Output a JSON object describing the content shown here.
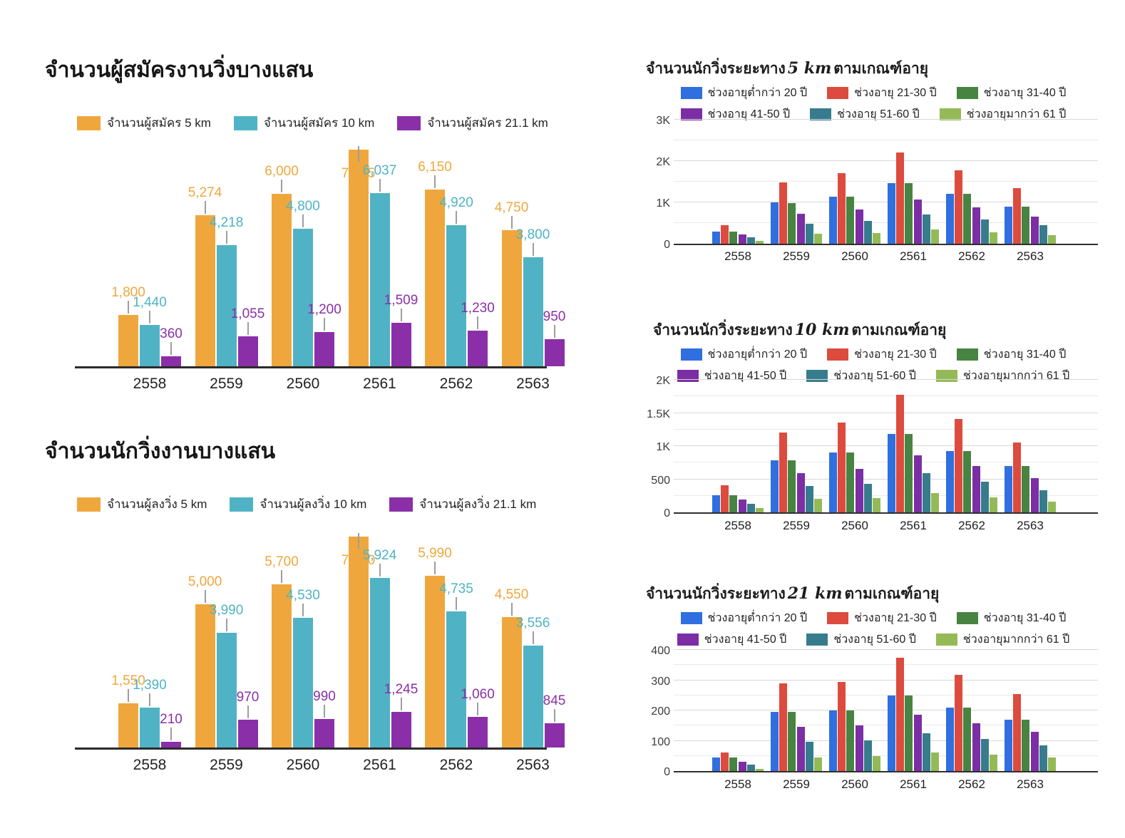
{
  "chart_data": [
    {
      "id": "registrants",
      "type": "bar",
      "title": "จำนวนผู้สมัครงานวิ่งบางแสน",
      "categories": [
        "2558",
        "2559",
        "2560",
        "2561",
        "2562",
        "2563"
      ],
      "ylim": [
        0,
        7700
      ],
      "grid": false,
      "legend_position": "top",
      "series": [
        {
          "name": "จำนวนผู้สมัคร 5 km",
          "color": "#EFA73D",
          "values": [
            1800,
            5274,
            6000,
            7545,
            6150,
            4750
          ],
          "labels": [
            "1,800",
            "5,274",
            "6,000",
            "7,545",
            "6,150",
            "4,750"
          ]
        },
        {
          "name": "จำนวนผู้สมัคร 10 km",
          "color": "#4FB3C5",
          "values": [
            1440,
            4218,
            4800,
            6037,
            4920,
            3800
          ],
          "labels": [
            "1,440",
            "4,218",
            "4,800",
            "6,037",
            "4,920",
            "3,800"
          ]
        },
        {
          "name": "จำนวนผู้สมัคร 21.1 km",
          "color": "#8A2FA8",
          "values": [
            360,
            1055,
            1200,
            1509,
            1230,
            950
          ],
          "labels": [
            "360",
            "1,055",
            "1,200",
            "1,509",
            "1,230",
            "950"
          ]
        }
      ]
    },
    {
      "id": "runners",
      "type": "bar",
      "title": "จำนวนนักวิ่งงานบางแสน",
      "categories": [
        "2558",
        "2559",
        "2560",
        "2561",
        "2562",
        "2563"
      ],
      "ylim": [
        0,
        7700
      ],
      "grid": false,
      "legend_position": "top",
      "series": [
        {
          "name": "จำนวนผู้ลงวิ่ง 5 km",
          "color": "#EFA73D",
          "values": [
            1550,
            5000,
            5700,
            7350,
            5990,
            4550
          ],
          "labels": [
            "1,550",
            "5,000",
            "5,700",
            "7,350",
            "5,990",
            "4,550"
          ]
        },
        {
          "name": "จำนวนผู้ลงวิ่ง 10 km",
          "color": "#4FB3C5",
          "values": [
            1390,
            3990,
            4530,
            5924,
            4735,
            3556
          ],
          "labels": [
            "1,390",
            "3,990",
            "4,530",
            "5,924",
            "4,735",
            "3,556"
          ]
        },
        {
          "name": "จำนวนผู้ลงวิ่ง 21.1 km",
          "color": "#8A2FA8",
          "values": [
            210,
            970,
            990,
            1245,
            1060,
            845
          ],
          "labels": [
            "210",
            "970",
            "990",
            "1,245",
            "1,060",
            "845"
          ]
        }
      ]
    },
    {
      "id": "age_5km",
      "type": "bar",
      "title_prefix": "จำนวนนักวิ่งระยะทาง",
      "title_distance": "5 km",
      "title_suffix": "ตามเกณฑ์อายุ",
      "categories": [
        "2558",
        "2559",
        "2560",
        "2561",
        "2562",
        "2563"
      ],
      "ylim": [
        0,
        3000
      ],
      "minor_step": 500,
      "grid": true,
      "legend_position": "top",
      "y_ticks": [
        {
          "label": "3K",
          "value": 3000
        },
        {
          "label": "2K",
          "value": 2000
        },
        {
          "label": "1K",
          "value": 1000
        },
        {
          "label": "0",
          "value": 0
        }
      ],
      "series": [
        {
          "name": "ช่วงอายุต่ำกว่า 20 ปี",
          "color": "#2F6FE0",
          "values": [
            300,
            1000,
            1140,
            1470,
            1200,
            890
          ]
        },
        {
          "name": "ช่วงอายุ 21-30 ปี",
          "color": "#DC4B3E",
          "values": [
            450,
            1480,
            1700,
            2200,
            1780,
            1350
          ]
        },
        {
          "name": "ช่วงอายุ 31-40 ปี",
          "color": "#478442",
          "values": [
            300,
            990,
            1140,
            1460,
            1200,
            890
          ]
        },
        {
          "name": "ช่วงอายุ 41-50 ปี",
          "color": "#7C2EA5",
          "values": [
            220,
            720,
            830,
            1070,
            880,
            660
          ]
        },
        {
          "name": "ช่วงอายุ 51-60 ปี",
          "color": "#377C8D",
          "values": [
            160,
            480,
            560,
            710,
            580,
            450
          ]
        },
        {
          "name": "ช่วงอายุมากว่า 61 ปี",
          "color": "#94BA57",
          "values": [
            70,
            240,
            260,
            340,
            280,
            210
          ]
        }
      ]
    },
    {
      "id": "age_10km",
      "type": "bar",
      "title_prefix": "จำนวนนักวิ่งระยะทาง",
      "title_distance": "10 km",
      "title_suffix": "ตามเกณฑ์อายุ",
      "categories": [
        "2558",
        "2559",
        "2560",
        "2561",
        "2562",
        "2563"
      ],
      "ylim": [
        0,
        2000
      ],
      "minor_step": 250,
      "grid": true,
      "legend_position": "top",
      "y_ticks": [
        {
          "label": "2K",
          "value": 2000
        },
        {
          "label": "1.5K",
          "value": 1500
        },
        {
          "label": "1K",
          "value": 1000
        },
        {
          "label": "500",
          "value": 500
        },
        {
          "label": "0",
          "value": 0
        }
      ],
      "series": [
        {
          "name": "ช่วงอายุต่ำกว่า 20 ปี",
          "color": "#2F6FE0",
          "values": [
            260,
            780,
            900,
            1180,
            920,
            700
          ]
        },
        {
          "name": "ช่วงอายุ 21-30 ปี",
          "color": "#DC4B3E",
          "values": [
            410,
            1200,
            1350,
            1770,
            1410,
            1050
          ]
        },
        {
          "name": "ช่วงอายุ 31-40 ปี",
          "color": "#478442",
          "values": [
            260,
            780,
            900,
            1180,
            920,
            700
          ]
        },
        {
          "name": "ช่วงอายุ 41-50 ปี",
          "color": "#7C2EA5",
          "values": [
            190,
            590,
            660,
            860,
            700,
            520
          ]
        },
        {
          "name": "ช่วงอายุ 51-60 ปี",
          "color": "#377C8D",
          "values": [
            130,
            400,
            430,
            590,
            460,
            330
          ]
        },
        {
          "name": "ช่วงอายุมากกว่า 61 ปี",
          "color": "#94BA57",
          "values": [
            65,
            200,
            220,
            290,
            230,
            160
          ]
        }
      ]
    },
    {
      "id": "age_21km",
      "type": "bar",
      "title_prefix": "จำนวนนักวิ่งระยะทาง",
      "title_distance": "21 km",
      "title_suffix": "ตามเกณฑ์อายุ",
      "categories": [
        "2558",
        "2559",
        "2560",
        "2561",
        "2562",
        "2563"
      ],
      "ylim": [
        0,
        400
      ],
      "minor_step": 50,
      "grid": true,
      "legend_position": "top",
      "y_ticks": [
        {
          "label": "400",
          "value": 400
        },
        {
          "label": "300",
          "value": 300
        },
        {
          "label": "200",
          "value": 200
        },
        {
          "label": "100",
          "value": 100
        },
        {
          "label": "0",
          "value": 0
        }
      ],
      "series": [
        {
          "name": "ช่วงอายุต่ำกว่า 20 ปี",
          "color": "#2F6FE0",
          "values": [
            45,
            195,
            200,
            250,
            210,
            170
          ]
        },
        {
          "name": "ช่วงอายุ 21-30 ปี",
          "color": "#DC4B3E",
          "values": [
            62,
            290,
            295,
            375,
            318,
            255
          ]
        },
        {
          "name": "ช่วงอายุ 31-40 ปี",
          "color": "#478442",
          "values": [
            45,
            195,
            200,
            250,
            210,
            170
          ]
        },
        {
          "name": "ช่วงอายุ 41-50 ปี",
          "color": "#7C2EA5",
          "values": [
            31,
            145,
            150,
            185,
            158,
            130
          ]
        },
        {
          "name": "ช่วงอายุ 51-60 ปี",
          "color": "#377C8D",
          "values": [
            21,
            97,
            100,
            125,
            106,
            85
          ]
        },
        {
          "name": "ช่วงอายุมากกว่า 61 ปี",
          "color": "#94BA57",
          "values": [
            8,
            45,
            50,
            62,
            53,
            45
          ]
        }
      ]
    }
  ]
}
